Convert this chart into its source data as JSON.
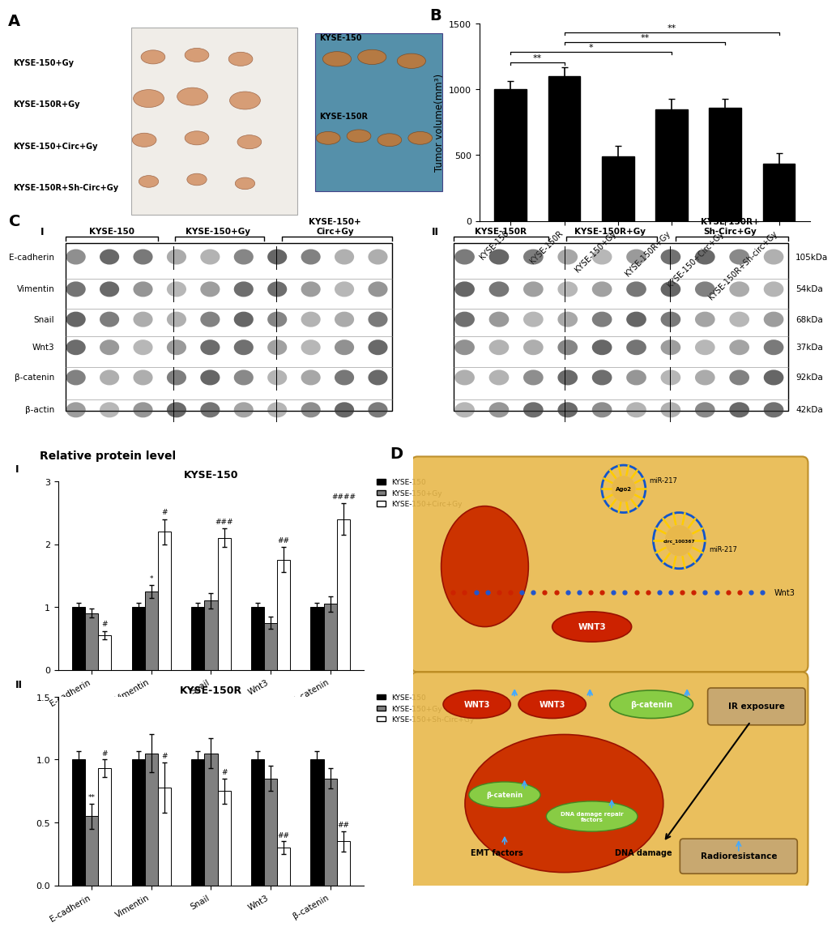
{
  "panel_B": {
    "categories": [
      "KYSE-150",
      "KYSE-150R",
      "KYSE-150+Gy",
      "KYSE-150R+Gy",
      "KYSE-150+Circ+Gy",
      "KYSE-150R+Sh-circ+Gy"
    ],
    "values": [
      1000,
      1100,
      490,
      850,
      860,
      435
    ],
    "errors": [
      60,
      70,
      80,
      80,
      70,
      80
    ],
    "bar_color": "#000000",
    "ylabel": "Tumor volume(mm³)",
    "ylim": [
      0,
      1500
    ],
    "yticks": [
      0,
      500,
      1000,
      1500
    ]
  },
  "panel_C_I": {
    "title": "KYSE-150",
    "categories": [
      "E-cadherin",
      "Vimentin",
      "Snail",
      "Wnt3",
      "β-catenin"
    ],
    "series": [
      {
        "label": "KYSE-150",
        "color": "#000000",
        "values": [
          1.0,
          1.0,
          1.0,
          1.0,
          1.0
        ]
      },
      {
        "label": "KYSE-150+Gy",
        "color": "#808080",
        "values": [
          0.9,
          1.25,
          1.1,
          0.75,
          1.05
        ]
      },
      {
        "label": "KYSE-150+Circ+Gy",
        "color": "#ffffff",
        "values": [
          0.55,
          2.2,
          2.1,
          1.75,
          2.4
        ]
      }
    ],
    "errors": [
      [
        0.07,
        0.07,
        0.07,
        0.07,
        0.07
      ],
      [
        0.07,
        0.1,
        0.12,
        0.1,
        0.12
      ],
      [
        0.07,
        0.2,
        0.15,
        0.2,
        0.25
      ]
    ],
    "ylim": [
      0,
      3
    ],
    "yticks": [
      0,
      1,
      2,
      3
    ]
  },
  "panel_C_II": {
    "title": "KYSE-150R",
    "categories": [
      "E-cadherin",
      "Vimentin",
      "Snail",
      "Wnt3",
      "β-catenin"
    ],
    "series": [
      {
        "label": "KYSE-150",
        "color": "#000000",
        "values": [
          1.0,
          1.0,
          1.0,
          1.0,
          1.0
        ]
      },
      {
        "label": "KYSE-150+Gy",
        "color": "#808080",
        "values": [
          0.55,
          1.05,
          1.05,
          0.85,
          0.85
        ]
      },
      {
        "label": "KYSE-150+Sh-Circ+Gy",
        "color": "#ffffff",
        "values": [
          0.93,
          0.78,
          0.75,
          0.3,
          0.35
        ]
      }
    ],
    "errors": [
      [
        0.07,
        0.07,
        0.07,
        0.07,
        0.07
      ],
      [
        0.1,
        0.15,
        0.12,
        0.1,
        0.08
      ],
      [
        0.07,
        0.2,
        0.1,
        0.05,
        0.08
      ]
    ],
    "ylim": [
      0,
      1.5
    ],
    "yticks": [
      0.0,
      0.5,
      1.0,
      1.5
    ]
  },
  "wb_I": {
    "protein_labels": [
      "E-cadherin",
      "Vimentin",
      "Snail",
      "Wnt3",
      "β-catenin",
      "β-actin"
    ],
    "col_headers": [
      "KYSE-150",
      "KYSE-150+Gy",
      "KYSE-150+\nCirc+Gy"
    ],
    "n_lanes_per_group": [
      3,
      3,
      4
    ],
    "kda_labels": [
      "",
      "",
      "",
      "",
      "",
      ""
    ]
  },
  "wb_II": {
    "col_headers": [
      "KYSE-150R",
      "KYSE-150R+Gy",
      "KYSE-150R+\nSh-Circ+Gy"
    ],
    "n_lanes_per_group": [
      3,
      3,
      4
    ],
    "kda_labels": [
      "105kDa",
      "54kDa",
      "68kDa",
      "37kDa",
      "92kDa",
      "42kDa"
    ]
  },
  "diagram": {
    "upper_bg": "#e8b84b",
    "lower_bg": "#e8b84b",
    "nucleus_color": "#cc3300",
    "circ_border": "#1155cc",
    "wnt3_color": "#cc2200",
    "beta_color": "#88cc44",
    "ir_box_color": "#c8a870",
    "radio_box_color": "#c8a870"
  }
}
